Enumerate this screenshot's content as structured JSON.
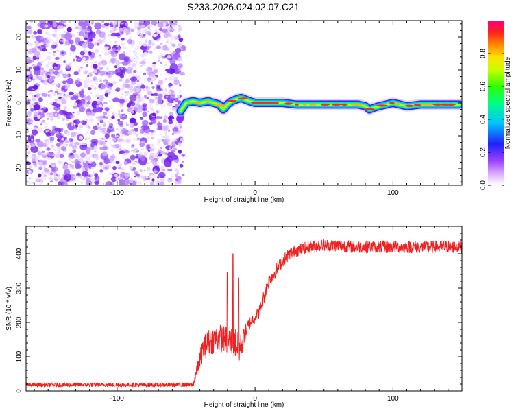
{
  "title": "S233.2026.024.02.07.C21",
  "colors": {
    "scatter": "#7a2cf0",
    "snr_line": "#ee2222",
    "axis": "#000000"
  },
  "chart_data": [
    {
      "type": "heatmap",
      "xlabel": "Height of straight line (km)",
      "ylabel": "Frequency (Hz)",
      "xlim": [
        -166,
        150
      ],
      "ylim": [
        -25,
        25
      ],
      "x_ticks": [
        -100,
        0,
        100
      ],
      "x_tick_labels": [
        "-100",
        "0",
        "100"
      ],
      "y_ticks": [
        20,
        10,
        0,
        -10,
        -20
      ],
      "y_tick_labels": [
        "20",
        "10",
        "0",
        "-10",
        "-20"
      ],
      "noise_region_x": [
        -166,
        -52
      ],
      "ridge": {
        "x": [
          -54,
          -50,
          -45,
          -40,
          -34,
          -30,
          -26,
          -23,
          -20,
          -17,
          -14,
          -10,
          -7,
          -4,
          0,
          10,
          20,
          30,
          40,
          50,
          60,
          70,
          75,
          80,
          83,
          86,
          90,
          95,
          100,
          110,
          120,
          130,
          140,
          148
        ],
        "y": [
          -2.5,
          0.0,
          0.5,
          0.0,
          0.5,
          0.0,
          -0.5,
          -2.0,
          -0.5,
          0.5,
          1.0,
          1.5,
          1.0,
          0.5,
          0.0,
          0.0,
          0.0,
          -0.5,
          -0.5,
          -0.5,
          -0.5,
          -0.5,
          -0.5,
          -1.0,
          -2.0,
          -1.5,
          -1.0,
          -0.5,
          0.0,
          -1.0,
          -0.5,
          -0.5,
          -0.5,
          -0.5
        ]
      },
      "colorbar": {
        "label": "Normalized spectral amplitude",
        "range": [
          0,
          1
        ],
        "ticks": [
          0.0,
          0.2,
          0.4,
          0.6,
          0.8
        ],
        "tick_labels": [
          "0.0",
          "0.2",
          "0.4",
          "0.6",
          "0.8"
        ]
      }
    },
    {
      "type": "line",
      "xlabel": "Height of straight line (km)",
      "ylabel": "SNR (10 * v/v)",
      "xlim": [
        -166,
        150
      ],
      "ylim": [
        0,
        480
      ],
      "x_ticks": [
        -100,
        0,
        100
      ],
      "x_tick_labels": [
        "-100",
        "0",
        "100"
      ],
      "y_ticks": [
        0,
        100,
        200,
        300,
        400
      ],
      "y_tick_labels": [
        "0",
        "100",
        "200",
        "300",
        "400"
      ],
      "series": [
        {
          "name": "SNR",
          "x": [
            -166,
            -120,
            -80,
            -45,
            -42,
            -38,
            -34,
            -30,
            -26,
            -22,
            -18,
            -14,
            -12,
            -10,
            -8,
            -5,
            -2,
            0,
            3,
            6,
            10,
            15,
            20,
            25,
            30,
            40,
            50,
            60,
            70,
            80,
            90,
            100,
            110,
            120,
            130,
            140,
            150
          ],
          "y": [
            18,
            18,
            18,
            18,
            60,
            120,
            140,
            150,
            155,
            150,
            145,
            140,
            120,
            130,
            160,
            190,
            210,
            215,
            230,
            270,
            320,
            350,
            380,
            400,
            410,
            420,
            425,
            425,
            420,
            420,
            420,
            420,
            420,
            420,
            420,
            420,
            420
          ],
          "noise": [
            6,
            6,
            6,
            6,
            20,
            35,
            40,
            40,
            40,
            40,
            45,
            50,
            45,
            40,
            25,
            20,
            18,
            18,
            18,
            20,
            20,
            20,
            18,
            18,
            18,
            18,
            18,
            18,
            18,
            18,
            18,
            18,
            18,
            18,
            18,
            18,
            18
          ],
          "spikes": [
            {
              "x": -16,
              "y": 400
            },
            {
              "x": -20,
              "y": 345
            },
            {
              "x": -12,
              "y": 330
            }
          ]
        }
      ]
    }
  ]
}
